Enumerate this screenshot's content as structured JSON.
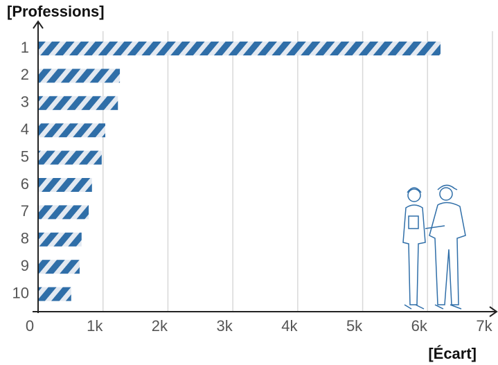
{
  "chart_data": {
    "type": "bar",
    "orientation": "horizontal",
    "y_label": "[Professions]",
    "x_label": "[Écart]",
    "categories": [
      "1",
      "2",
      "3",
      "4",
      "5",
      "6",
      "7",
      "8",
      "9",
      "10"
    ],
    "values": [
      6200,
      1260,
      1230,
      1035,
      980,
      830,
      780,
      670,
      640,
      510
    ],
    "color": "#2f6ea8",
    "xlim": [
      0,
      7000
    ],
    "xticks": [
      0,
      {
        "value": 1000,
        "label": "1k"
      },
      {
        "value": 2000,
        "label": "2k"
      },
      {
        "value": 3000,
        "label": "3k"
      },
      {
        "value": 4000,
        "label": "4k"
      },
      {
        "value": 5000,
        "label": "5k"
      },
      {
        "value": 6000,
        "label": "6k"
      },
      {
        "value": 7000,
        "label": "7k"
      }
    ],
    "grid": true
  }
}
